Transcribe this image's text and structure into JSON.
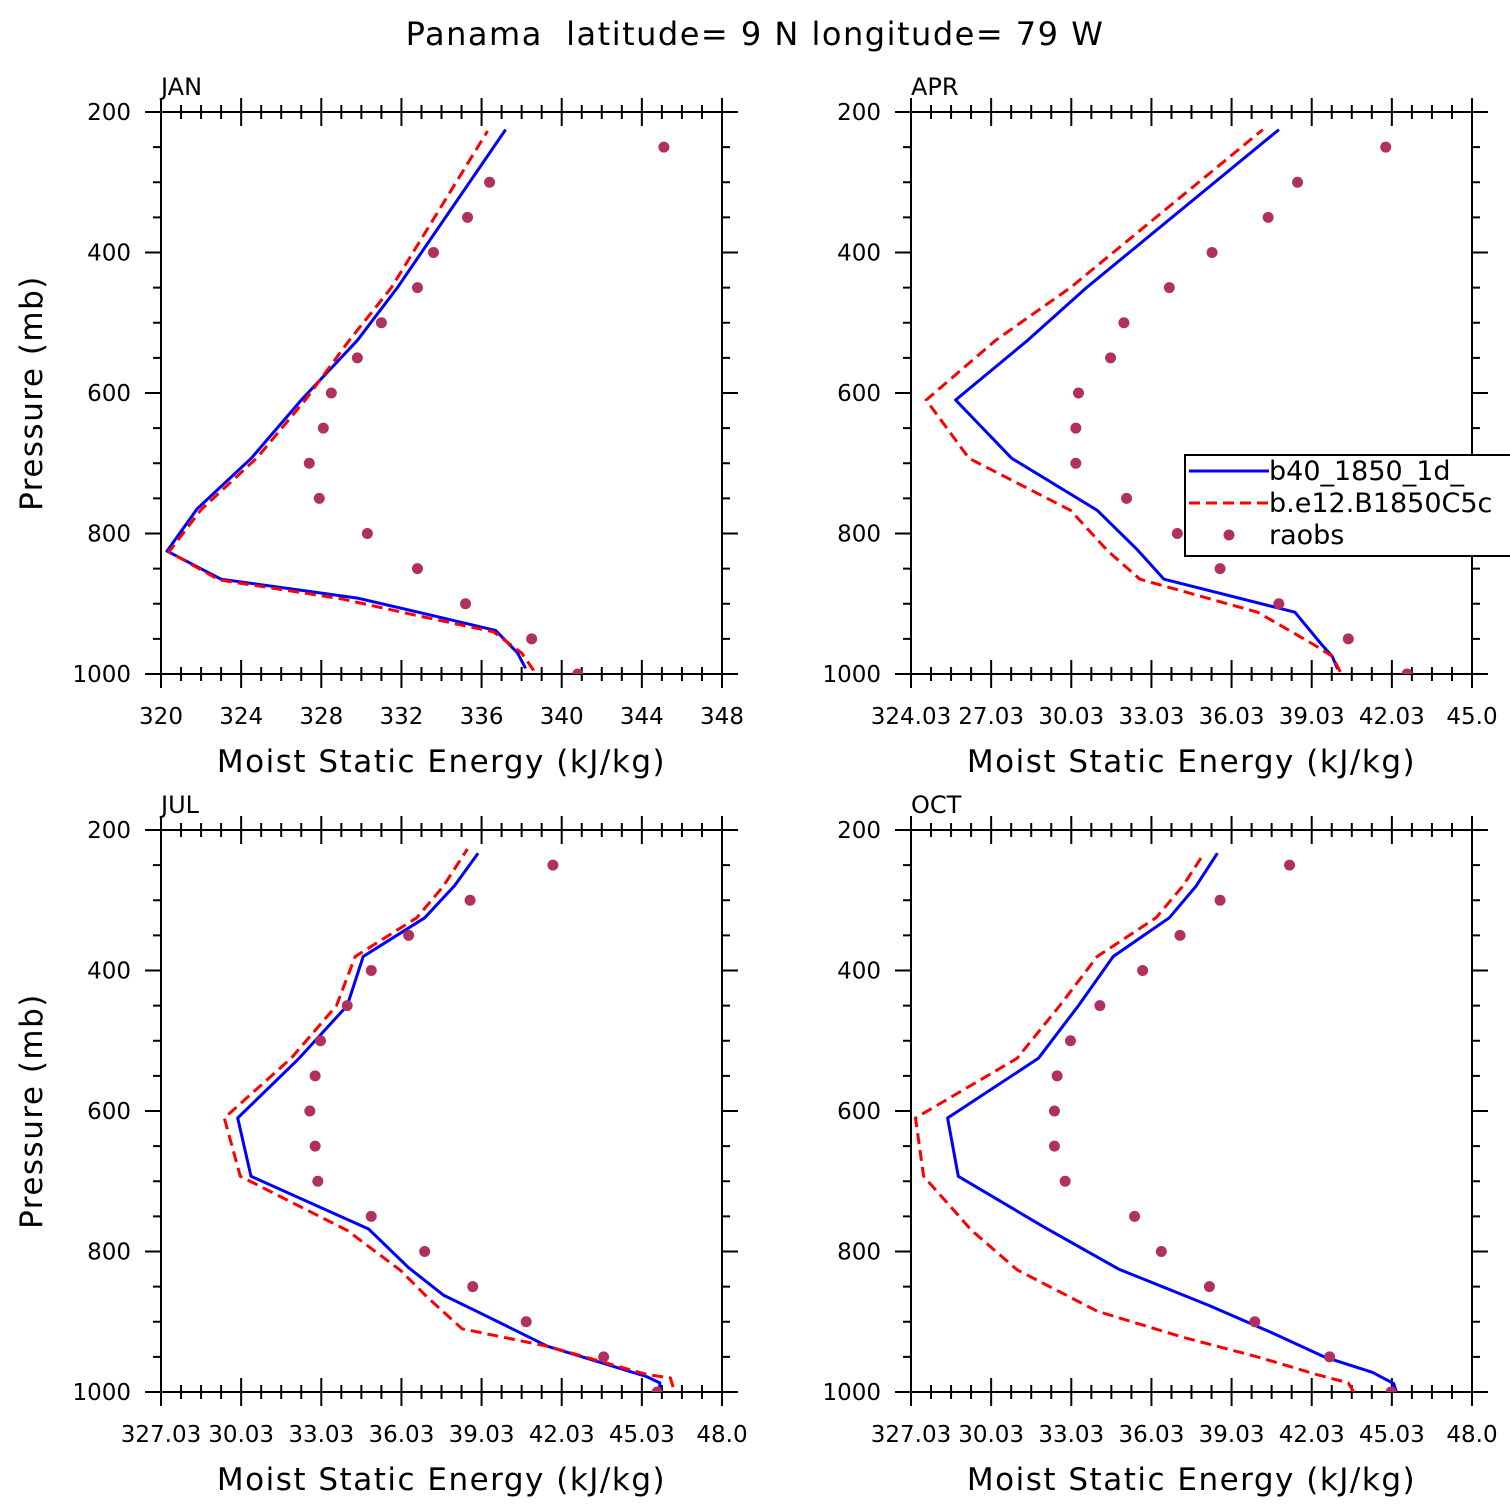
{
  "title": "Panama  latitude= 9 N longitude= 79 W",
  "chart_data": [
    {
      "type": "line",
      "panel": "JAN",
      "xlabel": "Moist Static Energy (kJ/kg)",
      "ylabel": "Pressure (mb)",
      "xlim": [
        320,
        348
      ],
      "ylim": [
        1000,
        200
      ],
      "xticks": [
        320,
        324,
        328,
        332,
        336,
        340,
        344,
        348
      ],
      "xtick_labels": [
        "320",
        "324",
        "328",
        "332",
        "336",
        "340",
        "344",
        "348"
      ],
      "yticks": [
        200,
        400,
        600,
        800,
        1000
      ],
      "series": [
        {
          "key": "model1",
          "color": "#0000ff",
          "style": "solid",
          "x": [
            338.2,
            337.8,
            336.7,
            333.0,
            329.8,
            323.0,
            320.3,
            321.8,
            324.5,
            327.0,
            329.8,
            331.8,
            337.2
          ],
          "y": [
            992,
            970,
            938,
            913,
            892,
            865,
            825,
            765,
            693,
            610,
            525,
            450,
            225
          ]
        },
        {
          "key": "model2",
          "color": "#ff0000",
          "style": "dashed",
          "x": [
            338.6,
            338.0,
            336.6,
            332.5,
            329.0,
            322.9,
            320.4,
            322.0,
            324.8,
            327.2,
            329.4,
            331.5,
            336.3
          ],
          "y": [
            995,
            970,
            940,
            915,
            893,
            866,
            826,
            766,
            692,
            610,
            525,
            450,
            227
          ]
        },
        {
          "key": "obs",
          "color": "#b03060",
          "style": "points",
          "x": [
            340.8,
            338.5,
            335.2,
            332.8,
            330.3,
            327.9,
            327.4,
            328.1,
            328.5,
            329.8,
            331.0,
            332.8,
            333.6,
            335.3,
            336.4,
            345.1
          ],
          "y": [
            1000,
            950,
            900,
            850,
            800,
            750,
            700,
            650,
            600,
            550,
            500,
            450,
            400,
            350,
            300,
            250
          ]
        }
      ]
    },
    {
      "type": "line",
      "panel": "APR",
      "xlabel": "Moist Static Energy (kJ/kg)",
      "ylabel": "",
      "xlim": [
        324.03,
        345.03
      ],
      "ylim": [
        1000,
        200
      ],
      "xticks": [
        324.03,
        327.03,
        330.03,
        333.03,
        336.03,
        339.03,
        342.03,
        345.03
      ],
      "xtick_labels": [
        "324.03",
        "27.03",
        "30.03",
        "33.03",
        "36.03",
        "39.03",
        "42.03",
        "45.0"
      ],
      "yticks": [
        200,
        400,
        600,
        800,
        1000
      ],
      "series": [
        {
          "key": "model1",
          "color": "#0000ff",
          "style": "solid",
          "x": [
            340.0,
            339.8,
            339.4,
            338.4,
            333.5,
            332.5,
            331.0,
            327.8,
            325.7,
            328.4,
            330.6,
            337.8
          ],
          "y": [
            993,
            975,
            958,
            912,
            865,
            823,
            767,
            693,
            610,
            525,
            450,
            225
          ]
        },
        {
          "key": "model2",
          "color": "#ff0000",
          "style": "dashed",
          "x": [
            340.1,
            339.8,
            339.1,
            337.0,
            332.6,
            331.4,
            330.0,
            326.2,
            324.6,
            327.2,
            330.0,
            337.2
          ],
          "y": [
            997,
            975,
            958,
            912,
            865,
            825,
            767,
            693,
            610,
            525,
            450,
            225
          ]
        },
        {
          "key": "obs",
          "color": "#b03060",
          "style": "points",
          "x": [
            342.6,
            340.4,
            337.8,
            335.6,
            334.0,
            332.1,
            330.2,
            330.2,
            330.3,
            331.5,
            332.0,
            333.7,
            335.3,
            337.4,
            338.5,
            341.8
          ],
          "y": [
            1000,
            950,
            900,
            850,
            800,
            750,
            700,
            650,
            600,
            550,
            500,
            450,
            400,
            350,
            300,
            250
          ]
        }
      ]
    },
    {
      "type": "line",
      "panel": "JUL",
      "xlabel": "Moist Static Energy (kJ/kg)",
      "ylabel": "Pressure (mb)",
      "xlim": [
        327.03,
        348.03
      ],
      "ylim": [
        1000,
        200
      ],
      "xticks": [
        327.03,
        330.03,
        333.03,
        336.03,
        339.03,
        342.03,
        345.03,
        348.03
      ],
      "xtick_labels": [
        "327.03",
        "30.03",
        "33.03",
        "36.03",
        "39.03",
        "42.03",
        "45.03",
        "48.0"
      ],
      "yticks": [
        200,
        400,
        600,
        800,
        1000
      ],
      "series": [
        {
          "key": "model1",
          "color": "#0000ff",
          "style": "solid",
          "x": [
            345.7,
            345.7,
            345.2,
            341.5,
            339.0,
            337.6,
            336.3,
            334.8,
            330.4,
            329.9,
            332.2,
            334.0,
            334.6,
            336.9,
            338.0,
            338.9
          ],
          "y": [
            1000,
            987,
            978,
            935,
            888,
            862,
            823,
            768,
            693,
            610,
            525,
            450,
            380,
            325,
            280,
            233
          ]
        },
        {
          "key": "model2",
          "color": "#ff0000",
          "style": "dashed",
          "x": [
            346.2,
            346.1,
            345.2,
            341.5,
            338.3,
            337.0,
            336.0,
            334.0,
            330.0,
            329.4,
            331.9,
            333.6,
            334.3,
            336.6,
            337.6,
            338.5
          ],
          "y": [
            993,
            980,
            975,
            935,
            910,
            865,
            827,
            770,
            693,
            610,
            525,
            450,
            380,
            325,
            280,
            227
          ]
        },
        {
          "key": "obs",
          "color": "#b03060",
          "style": "points",
          "x": [
            345.6,
            343.6,
            340.7,
            338.7,
            336.9,
            334.9,
            332.9,
            332.8,
            332.6,
            332.8,
            333.0,
            334.0,
            334.9,
            336.3,
            338.6,
            341.7
          ],
          "y": [
            1000,
            950,
            900,
            850,
            800,
            750,
            700,
            650,
            600,
            550,
            500,
            450,
            400,
            350,
            300,
            250
          ]
        }
      ]
    },
    {
      "type": "line",
      "panel": "OCT",
      "xlabel": "Moist Static Energy (kJ/kg)",
      "ylabel": "",
      "xlim": [
        327.03,
        348.03
      ],
      "ylim": [
        1000,
        200
      ],
      "xticks": [
        327.03,
        330.03,
        333.03,
        336.03,
        339.03,
        342.03,
        345.03,
        348.03
      ],
      "xtick_labels": [
        "327.03",
        "30.03",
        "33.03",
        "36.03",
        "39.03",
        "42.03",
        "45.03",
        "48.0"
      ],
      "yticks": [
        200,
        400,
        600,
        800,
        1000
      ],
      "series": [
        {
          "key": "model1",
          "color": "#0000ff",
          "style": "solid",
          "x": [
            345.2,
            345.1,
            344.3,
            342.5,
            340.5,
            338.2,
            334.8,
            332.0,
            328.8,
            328.4,
            331.8,
            333.3,
            334.6,
            336.7,
            337.7,
            338.5
          ],
          "y": [
            1000,
            988,
            972,
            950,
            915,
            877,
            825,
            765,
            693,
            610,
            525,
            450,
            380,
            325,
            280,
            233
          ]
        },
        {
          "key": "model2",
          "color": "#ff0000",
          "style": "dashed",
          "x": [
            343.6,
            343.4,
            342.2,
            340.0,
            337.2,
            334.0,
            331.0,
            329.3,
            327.5,
            327.2,
            331.0,
            332.6,
            334.0,
            336.2,
            337.2,
            338.0
          ],
          "y": [
            1000,
            987,
            975,
            950,
            922,
            885,
            826,
            770,
            693,
            610,
            525,
            450,
            380,
            325,
            280,
            233
          ]
        },
        {
          "key": "obs",
          "color": "#b03060",
          "style": "points",
          "x": [
            345.0,
            342.7,
            339.9,
            338.2,
            336.4,
            335.4,
            332.8,
            332.4,
            332.4,
            332.5,
            333.0,
            334.1,
            335.7,
            337.1,
            338.6,
            341.2
          ],
          "y": [
            1000,
            950,
            900,
            850,
            800,
            750,
            700,
            650,
            600,
            550,
            500,
            450,
            400,
            350,
            300,
            250
          ]
        }
      ]
    }
  ],
  "legend": {
    "placement": "right-middle of APR panel (clipped at image edge)",
    "entries": [
      {
        "label": "b40_1850_1d_",
        "series_key": "model1"
      },
      {
        "label": "b.e12.B1850C5c",
        "series_key": "model2"
      },
      {
        "label": "raobs",
        "series_key": "obs"
      }
    ]
  }
}
